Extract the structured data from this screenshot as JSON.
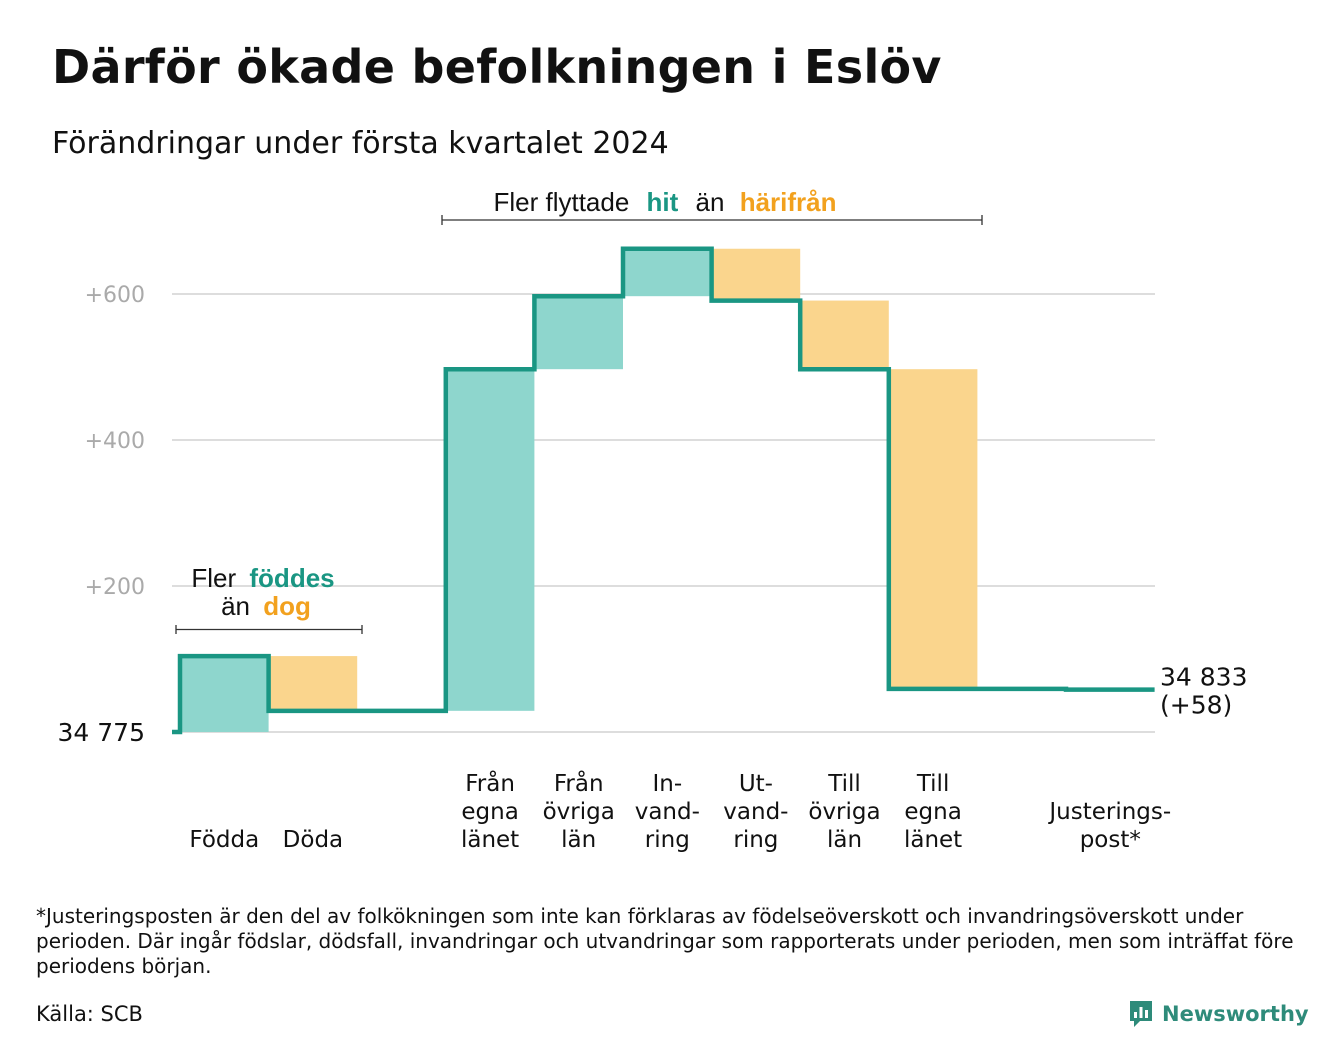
{
  "header": {
    "title": "Därför ökade befolkningen i Eslöv",
    "subtitle": "Förändringar under första kvartalet 2024"
  },
  "footnote": "*Justeringsposten är den del av folkökningen som inte kan förklaras av födelseöverskott och invandringsöverskott under perioden. Där ingår födslar, dödsfall, invandringar och utvandringar som rapporterats under perioden, men som inträffat före periodens början.",
  "source": "Källa: SCB",
  "brand": {
    "name": "Newsworthy",
    "icon": "newsworthy-logo-icon"
  },
  "colors": {
    "increase_fill": "#8ed6cd",
    "decrease_fill": "#fad58d",
    "step_line": "#1a9683",
    "accent_teal": "#1a9683",
    "accent_orange": "#f2a11e",
    "grid": "#dddddd",
    "tick_text": "#aaaaaa"
  },
  "annotations": {
    "migration": {
      "prefix": "Fler flyttade",
      "hit": "hit",
      "middle": "än",
      "harifran": "härifrån"
    },
    "births": {
      "prefix": "Fler",
      "foddes": "föddes",
      "middle": "än",
      "dog": "dog"
    }
  },
  "chart_data": {
    "type": "waterfall",
    "title": "Därför ökade befolkningen i Eslöv",
    "subtitle": "Förändringar under första kvartalet 2024",
    "start_value": 34775,
    "start_label": "34  775",
    "end_value": 34833,
    "end_label_lines": [
      "34 833",
      "(+58)"
    ],
    "ylim": [
      0,
      660
    ],
    "y_ticks": [
      {
        "value": 200,
        "label": "+200"
      },
      {
        "value": 400,
        "label": "+400"
      },
      {
        "value": 600,
        "label": "+600"
      }
    ],
    "grid": true,
    "steps": [
      {
        "label_lines": [
          "Födda"
        ],
        "change": 104,
        "cumulative": 104
      },
      {
        "label_lines": [
          "Döda"
        ],
        "change": -75,
        "cumulative": 29
      },
      {
        "label_lines": [],
        "change": 0,
        "cumulative": 29
      },
      {
        "label_lines": [
          "Från",
          "egna",
          "länet"
        ],
        "change": 468,
        "cumulative": 497
      },
      {
        "label_lines": [
          "Från",
          "övriga",
          "län"
        ],
        "change": 100,
        "cumulative": 597
      },
      {
        "label_lines": [
          "In-",
          "vand-",
          "ring"
        ],
        "change": 65,
        "cumulative": 662
      },
      {
        "label_lines": [
          "Ut-",
          "vand-",
          "ring"
        ],
        "change": -71,
        "cumulative": 591
      },
      {
        "label_lines": [
          "Till",
          "övriga",
          "län"
        ],
        "change": -94,
        "cumulative": 497
      },
      {
        "label_lines": [
          "Till",
          "egna",
          "länet"
        ],
        "change": -438,
        "cumulative": 59
      },
      {
        "label_lines": [],
        "change": 0,
        "cumulative": 59
      },
      {
        "label_lines": [
          "Justerings-",
          "post*"
        ],
        "change": -1,
        "cumulative": 58
      }
    ]
  }
}
